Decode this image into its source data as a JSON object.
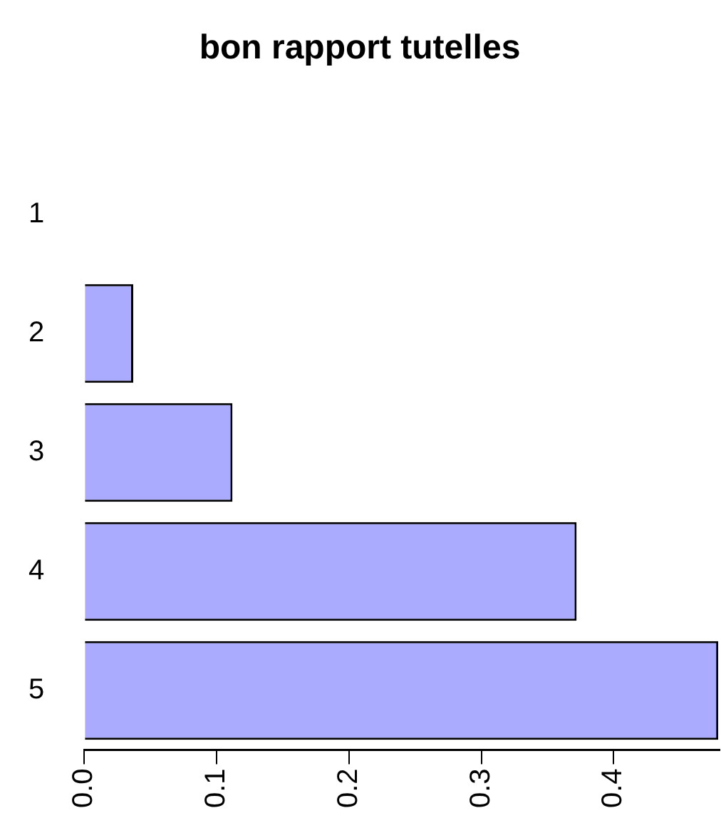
{
  "chart_data": {
    "type": "bar",
    "title": "bon rapport tutelles",
    "orientation": "horizontal",
    "categories": [
      "1",
      "2",
      "3",
      "4",
      "5"
    ],
    "values": [
      0,
      0.037,
      0.112,
      0.372,
      0.479
    ],
    "color": "#aaaaff",
    "xlim": [
      0,
      0.48
    ],
    "xticks": [
      {
        "value": 0,
        "label": "0.0"
      },
      {
        "value": 0.1,
        "label": "0.1"
      },
      {
        "value": 0.2,
        "label": "0.2"
      },
      {
        "value": 0.3,
        "label": "0.3"
      },
      {
        "value": 0.4,
        "label": "0.4"
      }
    ],
    "grid": false,
    "legend": false
  }
}
